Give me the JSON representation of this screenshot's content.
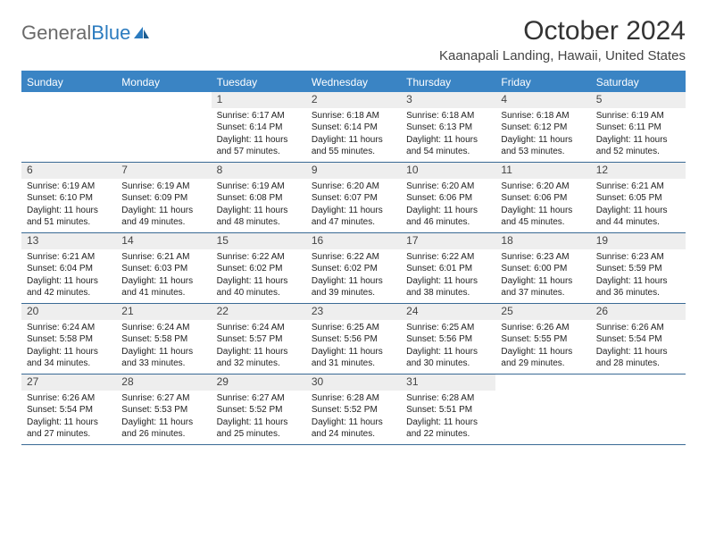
{
  "logo": {
    "text1": "General",
    "text2": "Blue"
  },
  "title": "October 2024",
  "subtitle": "Kaanapali Landing, Hawaii, United States",
  "colors": {
    "header_bg": "#3a84c4",
    "header_text": "#ffffff",
    "daybar_bg": "#eeeeee",
    "week_border": "#3a6a95",
    "title_color": "#333333",
    "logo_gray": "#6a6a6a",
    "logo_blue": "#2b7bbf"
  },
  "day_headers": [
    "Sunday",
    "Monday",
    "Tuesday",
    "Wednesday",
    "Thursday",
    "Friday",
    "Saturday"
  ],
  "weeks": [
    [
      {
        "n": "",
        "sr": "",
        "ss": "",
        "d1": "",
        "d2": ""
      },
      {
        "n": "",
        "sr": "",
        "ss": "",
        "d1": "",
        "d2": ""
      },
      {
        "n": "1",
        "sr": "Sunrise: 6:17 AM",
        "ss": "Sunset: 6:14 PM",
        "d1": "Daylight: 11 hours",
        "d2": "and 57 minutes."
      },
      {
        "n": "2",
        "sr": "Sunrise: 6:18 AM",
        "ss": "Sunset: 6:14 PM",
        "d1": "Daylight: 11 hours",
        "d2": "and 55 minutes."
      },
      {
        "n": "3",
        "sr": "Sunrise: 6:18 AM",
        "ss": "Sunset: 6:13 PM",
        "d1": "Daylight: 11 hours",
        "d2": "and 54 minutes."
      },
      {
        "n": "4",
        "sr": "Sunrise: 6:18 AM",
        "ss": "Sunset: 6:12 PM",
        "d1": "Daylight: 11 hours",
        "d2": "and 53 minutes."
      },
      {
        "n": "5",
        "sr": "Sunrise: 6:19 AM",
        "ss": "Sunset: 6:11 PM",
        "d1": "Daylight: 11 hours",
        "d2": "and 52 minutes."
      }
    ],
    [
      {
        "n": "6",
        "sr": "Sunrise: 6:19 AM",
        "ss": "Sunset: 6:10 PM",
        "d1": "Daylight: 11 hours",
        "d2": "and 51 minutes."
      },
      {
        "n": "7",
        "sr": "Sunrise: 6:19 AM",
        "ss": "Sunset: 6:09 PM",
        "d1": "Daylight: 11 hours",
        "d2": "and 49 minutes."
      },
      {
        "n": "8",
        "sr": "Sunrise: 6:19 AM",
        "ss": "Sunset: 6:08 PM",
        "d1": "Daylight: 11 hours",
        "d2": "and 48 minutes."
      },
      {
        "n": "9",
        "sr": "Sunrise: 6:20 AM",
        "ss": "Sunset: 6:07 PM",
        "d1": "Daylight: 11 hours",
        "d2": "and 47 minutes."
      },
      {
        "n": "10",
        "sr": "Sunrise: 6:20 AM",
        "ss": "Sunset: 6:06 PM",
        "d1": "Daylight: 11 hours",
        "d2": "and 46 minutes."
      },
      {
        "n": "11",
        "sr": "Sunrise: 6:20 AM",
        "ss": "Sunset: 6:06 PM",
        "d1": "Daylight: 11 hours",
        "d2": "and 45 minutes."
      },
      {
        "n": "12",
        "sr": "Sunrise: 6:21 AM",
        "ss": "Sunset: 6:05 PM",
        "d1": "Daylight: 11 hours",
        "d2": "and 44 minutes."
      }
    ],
    [
      {
        "n": "13",
        "sr": "Sunrise: 6:21 AM",
        "ss": "Sunset: 6:04 PM",
        "d1": "Daylight: 11 hours",
        "d2": "and 42 minutes."
      },
      {
        "n": "14",
        "sr": "Sunrise: 6:21 AM",
        "ss": "Sunset: 6:03 PM",
        "d1": "Daylight: 11 hours",
        "d2": "and 41 minutes."
      },
      {
        "n": "15",
        "sr": "Sunrise: 6:22 AM",
        "ss": "Sunset: 6:02 PM",
        "d1": "Daylight: 11 hours",
        "d2": "and 40 minutes."
      },
      {
        "n": "16",
        "sr": "Sunrise: 6:22 AM",
        "ss": "Sunset: 6:02 PM",
        "d1": "Daylight: 11 hours",
        "d2": "and 39 minutes."
      },
      {
        "n": "17",
        "sr": "Sunrise: 6:22 AM",
        "ss": "Sunset: 6:01 PM",
        "d1": "Daylight: 11 hours",
        "d2": "and 38 minutes."
      },
      {
        "n": "18",
        "sr": "Sunrise: 6:23 AM",
        "ss": "Sunset: 6:00 PM",
        "d1": "Daylight: 11 hours",
        "d2": "and 37 minutes."
      },
      {
        "n": "19",
        "sr": "Sunrise: 6:23 AM",
        "ss": "Sunset: 5:59 PM",
        "d1": "Daylight: 11 hours",
        "d2": "and 36 minutes."
      }
    ],
    [
      {
        "n": "20",
        "sr": "Sunrise: 6:24 AM",
        "ss": "Sunset: 5:58 PM",
        "d1": "Daylight: 11 hours",
        "d2": "and 34 minutes."
      },
      {
        "n": "21",
        "sr": "Sunrise: 6:24 AM",
        "ss": "Sunset: 5:58 PM",
        "d1": "Daylight: 11 hours",
        "d2": "and 33 minutes."
      },
      {
        "n": "22",
        "sr": "Sunrise: 6:24 AM",
        "ss": "Sunset: 5:57 PM",
        "d1": "Daylight: 11 hours",
        "d2": "and 32 minutes."
      },
      {
        "n": "23",
        "sr": "Sunrise: 6:25 AM",
        "ss": "Sunset: 5:56 PM",
        "d1": "Daylight: 11 hours",
        "d2": "and 31 minutes."
      },
      {
        "n": "24",
        "sr": "Sunrise: 6:25 AM",
        "ss": "Sunset: 5:56 PM",
        "d1": "Daylight: 11 hours",
        "d2": "and 30 minutes."
      },
      {
        "n": "25",
        "sr": "Sunrise: 6:26 AM",
        "ss": "Sunset: 5:55 PM",
        "d1": "Daylight: 11 hours",
        "d2": "and 29 minutes."
      },
      {
        "n": "26",
        "sr": "Sunrise: 6:26 AM",
        "ss": "Sunset: 5:54 PM",
        "d1": "Daylight: 11 hours",
        "d2": "and 28 minutes."
      }
    ],
    [
      {
        "n": "27",
        "sr": "Sunrise: 6:26 AM",
        "ss": "Sunset: 5:54 PM",
        "d1": "Daylight: 11 hours",
        "d2": "and 27 minutes."
      },
      {
        "n": "28",
        "sr": "Sunrise: 6:27 AM",
        "ss": "Sunset: 5:53 PM",
        "d1": "Daylight: 11 hours",
        "d2": "and 26 minutes."
      },
      {
        "n": "29",
        "sr": "Sunrise: 6:27 AM",
        "ss": "Sunset: 5:52 PM",
        "d1": "Daylight: 11 hours",
        "d2": "and 25 minutes."
      },
      {
        "n": "30",
        "sr": "Sunrise: 6:28 AM",
        "ss": "Sunset: 5:52 PM",
        "d1": "Daylight: 11 hours",
        "d2": "and 24 minutes."
      },
      {
        "n": "31",
        "sr": "Sunrise: 6:28 AM",
        "ss": "Sunset: 5:51 PM",
        "d1": "Daylight: 11 hours",
        "d2": "and 22 minutes."
      },
      {
        "n": "",
        "sr": "",
        "ss": "",
        "d1": "",
        "d2": ""
      },
      {
        "n": "",
        "sr": "",
        "ss": "",
        "d1": "",
        "d2": ""
      }
    ]
  ]
}
